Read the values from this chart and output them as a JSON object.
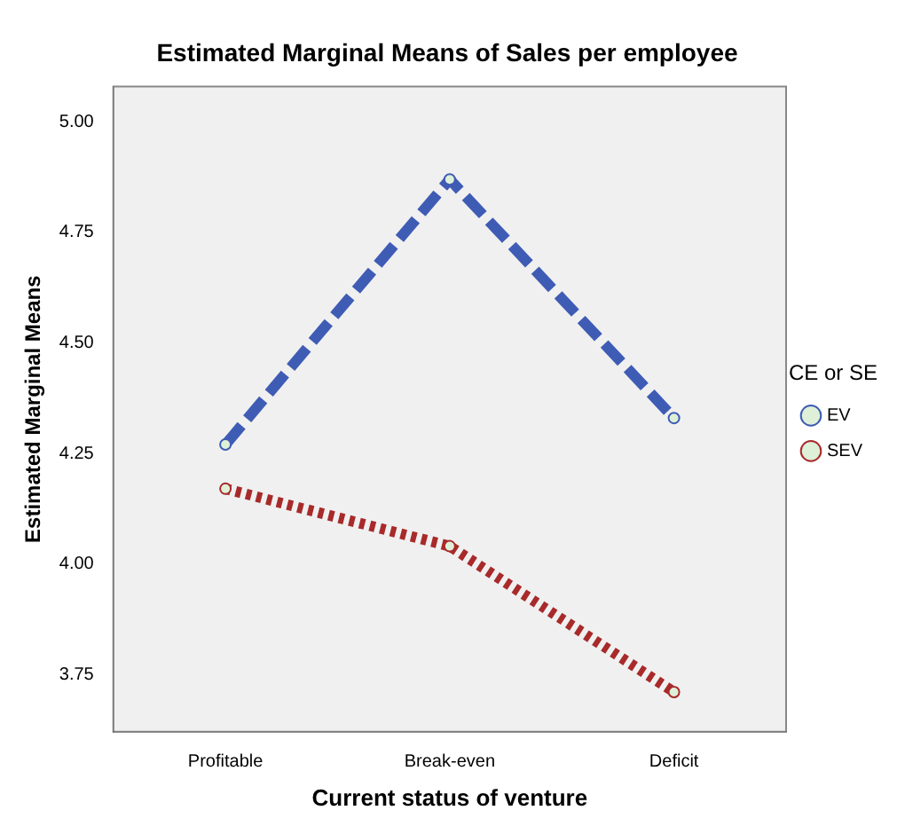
{
  "chart_data": {
    "type": "line",
    "title": "Estimated Marginal Means of Sales per employee",
    "xlabel": "Current status of venture",
    "ylabel": "Estimated Marginal Means",
    "legend_title": "CE or SE",
    "categories": [
      "Profitable",
      "Break-even",
      "Deficit"
    ],
    "series": [
      {
        "name": "EV",
        "color": "#3f5cb5",
        "values": [
          4.27,
          4.87,
          4.33
        ],
        "line_style": "dashed"
      },
      {
        "name": "SEV",
        "color": "#a82a2a",
        "values": [
          4.17,
          4.04,
          3.71
        ],
        "line_style": "dotted"
      }
    ],
    "ylim": [
      3.62,
      5.08
    ],
    "yticks": [
      {
        "value": 3.75,
        "label": "3.75"
      },
      {
        "value": 4,
        "label": "4.00"
      },
      {
        "value": 4.25,
        "label": "4.25"
      },
      {
        "value": 4.5,
        "label": "4.50"
      },
      {
        "value": 4.75,
        "label": "4.75"
      },
      {
        "value": 5,
        "label": "5.00"
      }
    ],
    "grid": false,
    "legend": "right",
    "marker": "circle"
  }
}
